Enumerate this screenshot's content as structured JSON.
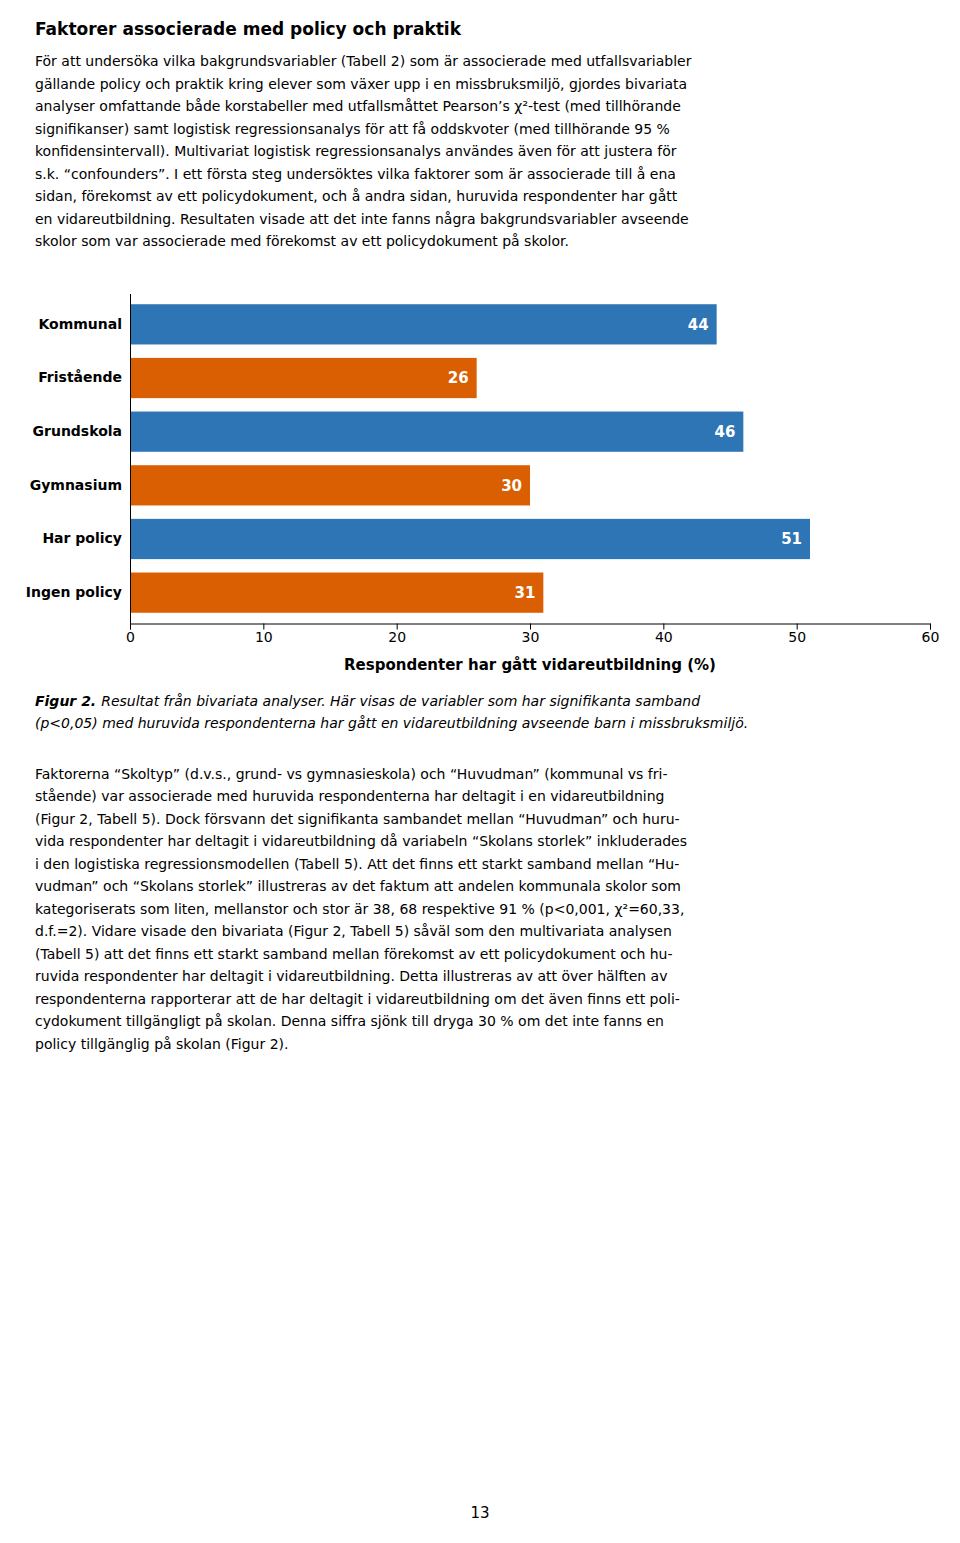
{
  "chart_data": {
    "type": "bar",
    "orientation": "horizontal",
    "title": "Faktorer associerade med policy och praktik",
    "annotations": [
      [
        "För att undersöka vilka bakgrundsvariabler (Tabell 2) som är associerade med utfallsvariabler",
        "gällande policy och praktik kring elever som växer upp i en missbruksmiljö, gjordes bivariata",
        "analyser omfattande både korstabeller med utfallsmåttet Pearson’s χ²-test (med tillhörande",
        "signifikanser) samt logistisk regressionsanalys för att få oddskvoter (med tillhörande 95 %",
        "konfidensintervall). Multivariat logistisk regressionsanalys användes även för att justera för",
        "s.k. “confounders”. I ett första steg undersöktes vilka faktorer som är associerade till å ena",
        "sidan, förekomst av ett policydokument, och å andra sidan, huruvida respondenter har gått",
        "en vidareutbildning. Resultaten visade att det inte fanns några bakgrundsvariabler avseende",
        "skolor som var associerade med förekomst av ett policydokument på skolor."
      ],
      [
        [
          "Figur 2.",
          "Resultat från bivariata analyser. Här visas de variabler som har signifikanta samband"
        ],
        "(p<0,05) med huruvida respondenterna har gått en vidareutbildning avseende barn i missbruksmiljö."
      ],
      [
        "Faktorerna “Skoltyp” (d.v.s., grund- vs gymnasieskola) och “Huvudman” (kommunal vs fri-",
        "stående) var associerade med huruvida respondenterna har deltagit i en vidareutbildning",
        "(Figur 2, Tabell 5). Dock försvann det signifikanta sambandet mellan “Huvudman” och huru-",
        "vida respondenter har deltagit i vidareutbildning då variabeln “Skolans storlek” inkluderades",
        "i den logistiska regressionsmodellen (Tabell 5). Att det finns ett starkt samband mellan “Hu-",
        "vudman” och “Skolans storlek” illustreras av det faktum att andelen kommunala skolor som",
        "kategoriserats som liten, mellanstor och stor är 38, 68 respektive 91 % (p<0,001, χ²=60,33,",
        "d.f.=2). Vidare visade den bivariata (Figur 2, Tabell 5) såväl som den multivariata analysen",
        "(Tabell 5) att det finns ett starkt samband mellan förekomst av ett policydokument och hu-",
        "ruvida respondenter har deltagit i vidareutbildning. Detta illustreras av att över hälften av",
        "respondenterna rapporterar att de har deltagit i vidareutbildning om det även finns ett poli-",
        "cydokument tillgängligt på skolan. Denna siffra sjönk till dryga 30 % om det inte fanns en",
        "policy tillgänglig på skolan (Figur 2)."
      ],
      [
        "13"
      ]
    ],
    "categories": [
      "Kommunal",
      "Fristående",
      "Grundskola",
      "Gymnasium",
      "Har policy",
      "Ingen policy"
    ],
    "values": [
      44,
      26,
      46,
      30,
      51,
      31
    ],
    "colors": [
      "#2E75B6",
      "#D95F02",
      "#2E75B6",
      "#D95F02",
      "#2E75B6",
      "#D95F02"
    ],
    "xlabel": "Respondenter har gått vidareutbildning (%)",
    "xlim": [
      0,
      60
    ],
    "xticks": [
      0,
      10,
      20,
      30,
      40,
      50,
      60
    ],
    "data_labels": true,
    "grid": false
  }
}
